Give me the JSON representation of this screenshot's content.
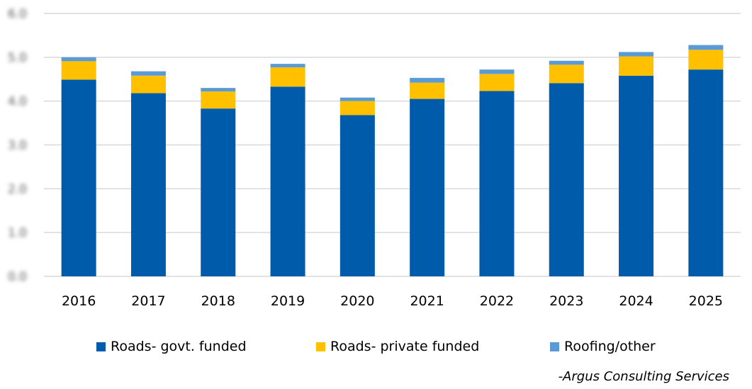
{
  "chart_data": {
    "type": "bar",
    "stacked": true,
    "title": "",
    "xlabel": "",
    "ylabel": "",
    "ylim": [
      0,
      6
    ],
    "yticks": [
      "0.0",
      "1.0",
      "2.0",
      "3.0",
      "4.0",
      "5.0",
      "6.0"
    ],
    "grid": true,
    "legend_position": "bottom",
    "categories": [
      "2016",
      "2017",
      "2018",
      "2019",
      "2020",
      "2021",
      "2022",
      "2023",
      "2024",
      "2025"
    ],
    "series": [
      {
        "name": "Roads- govt. funded",
        "color": "#005BAA",
        "values": [
          4.49,
          4.18,
          3.83,
          4.33,
          3.68,
          4.05,
          4.23,
          4.41,
          4.58,
          4.72
        ]
      },
      {
        "name": "Roads- private funded",
        "color": "#FFC000",
        "values": [
          0.42,
          0.4,
          0.39,
          0.44,
          0.32,
          0.37,
          0.39,
          0.42,
          0.44,
          0.45
        ]
      },
      {
        "name": "Roofing/other",
        "color": "#5B9BD5",
        "values": [
          0.09,
          0.1,
          0.08,
          0.08,
          0.08,
          0.11,
          0.1,
          0.09,
          0.1,
          0.11
        ]
      }
    ]
  },
  "credit": "-Argus Consulting Services"
}
